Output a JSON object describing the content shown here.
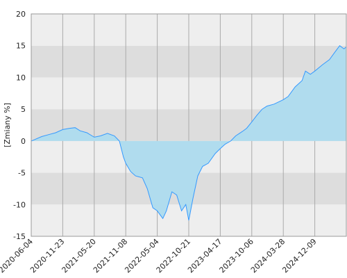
{
  "chart_data": {
    "type": "area",
    "y_label": "[Zmiany %]",
    "x": [
      "2020-06-04",
      "2020-07-31",
      "2020-09-07",
      "2020-10-15",
      "2020-11-23",
      "2021-01-01",
      "2021-02-01",
      "2021-03-01",
      "2021-04-09",
      "2021-05-20",
      "2021-06-23",
      "2021-07-31",
      "2021-09-07",
      "2021-10-04",
      "2021-10-26",
      "2021-11-08",
      "2021-12-05",
      "2022-01-02",
      "2022-02-10",
      "2022-03-09",
      "2022-04-09",
      "2022-05-04",
      "2022-06-03",
      "2022-06-22",
      "2022-07-22",
      "2022-08-17",
      "2022-09-12",
      "2022-10-05",
      "2022-10-21",
      "2022-11-14",
      "2022-12-11",
      "2023-01-07",
      "2023-02-08",
      "2023-03-19",
      "2023-04-17",
      "2023-05-14",
      "2023-06-13",
      "2023-07-10",
      "2023-08-16",
      "2023-09-08",
      "2023-10-06",
      "2023-11-02",
      "2023-12-02",
      "2023-12-29",
      "2024-02-06",
      "2024-03-28",
      "2024-05-06",
      "2024-07-02",
      "2024-08-27",
      "2024-09-24",
      "2024-11-03",
      "2024-12-09",
      "2025-01-20",
      "2025-02-27",
      "2025-03-29",
      "2025-04-24",
      "2025-05-17",
      "2025-05-30"
    ],
    "series": [
      {
        "color": "#3399ff",
        "fill": "#b0dcee",
        "values": [
          0,
          0.7,
          1.0,
          1.3,
          1.8,
          2.0,
          2.1,
          1.6,
          1.3,
          0.6,
          0.8,
          1.2,
          0.8,
          0,
          -2.5,
          -3.5,
          -4.8,
          -5.5,
          -5.8,
          -7.5,
          -10.5,
          -11,
          -12.2,
          -11,
          -8,
          -8.5,
          -11,
          -10,
          -12.5,
          -9,
          -5.5,
          -4,
          -3.5,
          -2,
          -1.2,
          -0.5,
          0,
          0.8,
          1.5,
          2,
          3,
          4,
          5,
          5.5,
          5.8,
          6.5,
          7,
          8.5,
          9.5,
          11,
          10.5,
          11,
          12,
          12.8,
          14,
          15,
          14.5,
          14.8
        ]
      }
    ],
    "xlim": [
      "2020-06-04",
      "2025-05-30"
    ],
    "xticks": [
      "2020-06-04",
      "2020-11-23",
      "2021-05-20",
      "2021-11-08",
      "2022-05-04",
      "2022-10-21",
      "2023-04-17",
      "2023-10-06",
      "2024-03-28",
      "2024-12-09"
    ],
    "ylim": [
      -15,
      20
    ],
    "yticks": [
      -15,
      -10,
      -5,
      0,
      5,
      10,
      15,
      20
    ],
    "band_colors": [
      "#eeeeee",
      "#dddddd"
    ],
    "grid": true
  }
}
